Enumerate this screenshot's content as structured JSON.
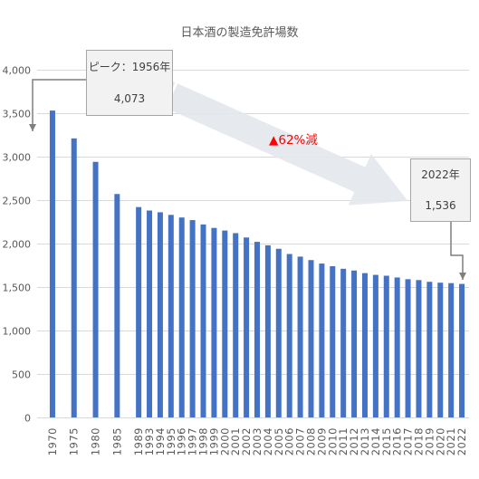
{
  "chart_data": {
    "type": "bar",
    "title": "日本酒の製造免許場数",
    "xlabel": "",
    "ylabel": "",
    "categories": [
      "1970",
      "1975",
      "1980",
      "1985",
      "1989",
      "1993",
      "1994",
      "1995",
      "1996",
      "1997",
      "1998",
      "1999",
      "2000",
      "2001",
      "2002",
      "2003",
      "2004",
      "2005",
      "2006",
      "2007",
      "2008",
      "2009",
      "2010",
      "2011",
      "2012",
      "2013",
      "2014",
      "2015",
      "2016",
      "2017",
      "2018",
      "2019",
      "2020",
      "2021",
      "2022"
    ],
    "values": [
      3530,
      3210,
      2940,
      2570,
      2420,
      2380,
      2360,
      2330,
      2300,
      2270,
      2220,
      2180,
      2150,
      2120,
      2070,
      2020,
      1980,
      1940,
      1880,
      1850,
      1810,
      1770,
      1740,
      1710,
      1690,
      1660,
      1640,
      1630,
      1610,
      1590,
      1580,
      1560,
      1550,
      1545,
      1536
    ],
    "ylim": [
      0,
      4000
    ],
    "yticks": [
      0,
      500,
      1000,
      1500,
      2000,
      2500,
      3000,
      3500,
      4000
    ],
    "ytick_labels": [
      "0",
      "500",
      "1,000",
      "1,500",
      "2,000",
      "2,500",
      "3,000",
      "3,500",
      "4,000"
    ],
    "grid": true,
    "legend": null,
    "annotations": {
      "peak_label": "ピーク：1956年",
      "peak_value": "4,073",
      "latest_label": "2022年",
      "latest_value": "1,536",
      "change": "▲62%減"
    }
  },
  "colors": {
    "bar": "#4472C4",
    "grid": "#D9D9D9",
    "axis_text": "#595959",
    "change_text": "#FF0000",
    "callout_fill": "#F2F2F2",
    "callout_border": "#A6A6A6",
    "connector": "#7F7F7F",
    "decline_arrow": "#E3E7EC"
  }
}
